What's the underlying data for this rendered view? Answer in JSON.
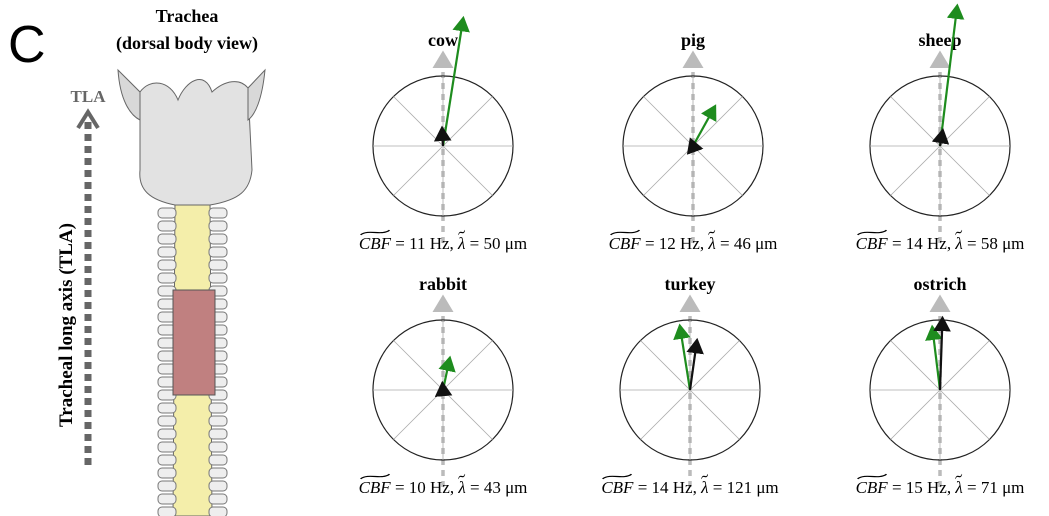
{
  "panel_label": "C",
  "trachea": {
    "title": "Trachea",
    "subtitle": "(dorsal body view)",
    "axis_short": "TLA",
    "axis_label": "Tracheal long axis (TLA)"
  },
  "panels": [
    {
      "name": "cow",
      "cbf_symbol": "CBF",
      "cbf": "= 11 Hz,",
      "lambda_symbol": "λ",
      "lambda": "= 50 μm",
      "green_arrow": {
        "angle_deg": 9,
        "length": 1.85
      },
      "black_arrow": {
        "angle_deg": -3,
        "length": 0.26
      }
    },
    {
      "name": "pig",
      "cbf_symbol": "CBF",
      "cbf": "= 12 Hz,",
      "lambda_symbol": "λ",
      "lambda": "= 46 μm",
      "green_arrow": {
        "angle_deg": 29,
        "length": 0.65
      },
      "black_arrow": {
        "angle_deg": -20,
        "length": 0.1
      }
    },
    {
      "name": "sheep",
      "cbf_symbol": "CBF",
      "cbf": "= 14 Hz,",
      "lambda_symbol": "λ",
      "lambda": "= 58 μm",
      "green_arrow": {
        "angle_deg": 7,
        "length": 2.02
      },
      "black_arrow": {
        "angle_deg": 10,
        "length": 0.23
      }
    },
    {
      "name": "rabbit",
      "cbf_symbol": "CBF",
      "cbf": "= 10 Hz,",
      "lambda_symbol": "λ",
      "lambda": "= 43 μm",
      "green_arrow": {
        "angle_deg": 12,
        "length": 0.47
      },
      "black_arrow": {
        "angle_deg": -5,
        "length": 0.1
      }
    },
    {
      "name": "turkey",
      "cbf_symbol": "CBF",
      "cbf": "= 14 Hz,",
      "lambda_symbol": "λ",
      "lambda": "= 121 μm",
      "green_arrow": {
        "angle_deg": -9,
        "length": 0.93
      },
      "black_arrow": {
        "angle_deg": 8,
        "length": 0.72
      }
    },
    {
      "name": "ostrich",
      "cbf_symbol": "CBF",
      "cbf": "= 15 Hz,",
      "lambda_symbol": "λ",
      "lambda": "= 71 μm",
      "green_arrow": {
        "angle_deg": -7,
        "length": 0.91
      },
      "black_arrow": {
        "angle_deg": 2,
        "length": 1.03
      }
    }
  ]
}
